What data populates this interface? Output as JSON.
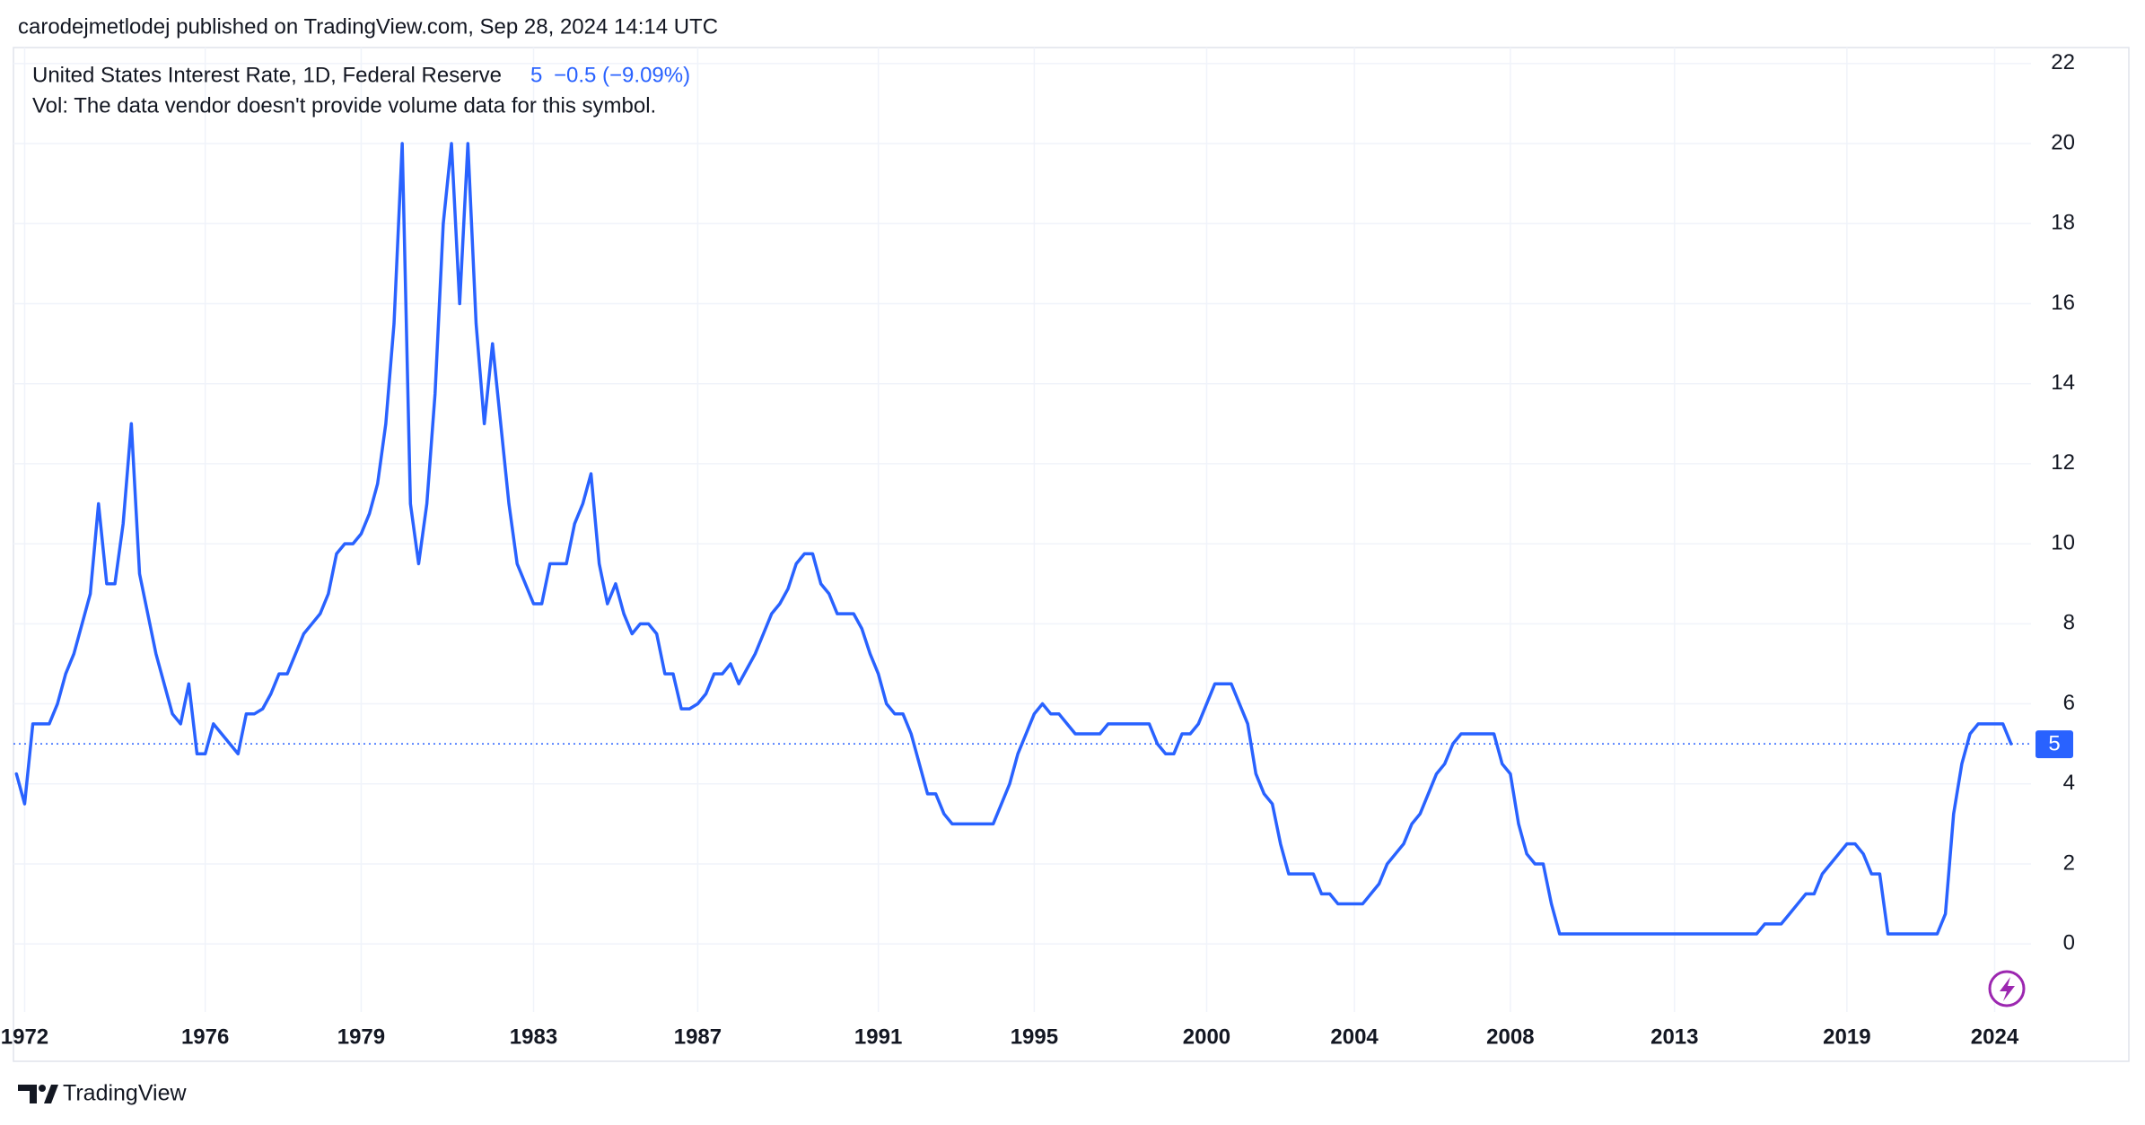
{
  "chart_data": {
    "type": "line",
    "attribution": "carodejmetlodej published on TradingView.com, Sep 28, 2024 14:14 UTC",
    "title": "United States Interest Rate, 1D, Federal Reserve",
    "last_value": 5,
    "change": "−0.5 (−9.09%)",
    "subtitle": "Vol: The data vendor doesn't provide volume data for this symbol.",
    "brand": "TradingView",
    "color": "#2962ff",
    "grid": true,
    "ylim": [
      -1.7,
      22.4
    ],
    "yticks": [
      0,
      2,
      4,
      6,
      8,
      10,
      12,
      14,
      16,
      18,
      20,
      22
    ],
    "categories": [
      null,
      "1972",
      null,
      null,
      null,
      null,
      null,
      null,
      null,
      null,
      null,
      null,
      null,
      null,
      null,
      null,
      null,
      null,
      null,
      null,
      null,
      null,
      null,
      "1976",
      null,
      null,
      null,
      null,
      null,
      null,
      null,
      null,
      null,
      null,
      null,
      null,
      null,
      null,
      null,
      null,
      null,
      null,
      "1979",
      null,
      null,
      null,
      null,
      null,
      null,
      null,
      null,
      null,
      null,
      null,
      null,
      null,
      null,
      null,
      null,
      null,
      null,
      null,
      null,
      "1983",
      null,
      null,
      null,
      null,
      null,
      null,
      null,
      null,
      null,
      null,
      null,
      null,
      null,
      null,
      null,
      null,
      null,
      null,
      null,
      "1987",
      null,
      null,
      null,
      null,
      null,
      null,
      null,
      null,
      null,
      null,
      null,
      null,
      null,
      null,
      null,
      null,
      null,
      null,
      null,
      null,
      null,
      "1991",
      null,
      null,
      null,
      null,
      null,
      null,
      null,
      null,
      null,
      null,
      null,
      null,
      null,
      null,
      null,
      null,
      null,
      null,
      "1995",
      null,
      null,
      null,
      null,
      null,
      null,
      null,
      null,
      null,
      null,
      null,
      null,
      null,
      null,
      null,
      null,
      null,
      null,
      null,
      null,
      "2000",
      null,
      null,
      null,
      null,
      null,
      null,
      null,
      null,
      null,
      null,
      null,
      null,
      null,
      null,
      null,
      null,
      null,
      "2004",
      null,
      null,
      null,
      null,
      null,
      null,
      null,
      null,
      null,
      null,
      null,
      null,
      null,
      null,
      null,
      null,
      null,
      null,
      "2008",
      null,
      null,
      null,
      null,
      null,
      null,
      null,
      null,
      null,
      null,
      null,
      null,
      null,
      null,
      null,
      null,
      null,
      null,
      null,
      "2013",
      null,
      null,
      null,
      null,
      null,
      null,
      null,
      null,
      null,
      null,
      null,
      null,
      null,
      null,
      null,
      null,
      null,
      null,
      null,
      null,
      "2019",
      null,
      null,
      null,
      null,
      null,
      null,
      null,
      null,
      null,
      null,
      null,
      null,
      null,
      null,
      null,
      null,
      null,
      "2024",
      null,
      null
    ],
    "values": [
      4.25,
      3.5,
      5.5,
      5.5,
      5.5,
      6,
      6.75,
      7.25,
      8,
      8.75,
      11,
      9,
      9,
      10.5,
      13,
      9.25,
      8.25,
      7.25,
      6.5,
      5.75,
      5.5,
      6.5,
      4.75,
      4.75,
      5.5,
      5.25,
      5,
      4.75,
      5.75,
      5.75,
      5.875,
      6.25,
      6.75,
      6.75,
      7.25,
      7.75,
      8,
      8.25,
      8.75,
      9.75,
      10,
      10,
      10.25,
      10.75,
      11.5,
      13,
      15.5,
      20,
      11,
      9.5,
      11,
      13.75,
      18,
      20,
      16,
      20,
      15.5,
      13,
      15,
      13,
      11,
      9.5,
      9,
      8.5,
      8.5,
      9.5,
      9.5,
      9.5,
      10.5,
      11,
      11.75,
      9.5,
      8.5,
      9,
      8.25,
      7.75,
      8,
      8,
      7.75,
      6.75,
      6.75,
      5.875,
      5.875,
      6,
      6.25,
      6.75,
      6.75,
      7,
      6.5,
      6.875,
      7.25,
      7.75,
      8.25,
      8.5,
      8.875,
      9.5,
      9.75,
      9.75,
      9,
      8.75,
      8.25,
      8.25,
      8.25,
      7.875,
      7.25,
      6.75,
      6,
      5.75,
      5.75,
      5.25,
      4.5,
      3.75,
      3.75,
      3.25,
      3,
      3,
      3,
      3,
      3,
      3,
      3.5,
      4,
      4.75,
      5.25,
      5.75,
      6,
      5.75,
      5.75,
      5.5,
      5.25,
      5.25,
      5.25,
      5.25,
      5.5,
      5.5,
      5.5,
      5.5,
      5.5,
      5.5,
      5,
      4.75,
      4.75,
      5.25,
      5.25,
      5.5,
      6,
      6.5,
      6.5,
      6.5,
      6,
      5.5,
      4.25,
      3.75,
      3.5,
      2.5,
      1.75,
      1.75,
      1.75,
      1.75,
      1.25,
      1.25,
      1,
      1,
      1,
      1,
      1.25,
      1.5,
      2,
      2.25,
      2.5,
      3,
      3.25,
      3.75,
      4.25,
      4.5,
      5,
      5.25,
      5.25,
      5.25,
      5.25,
      5.25,
      4.5,
      4.25,
      3,
      2.25,
      2,
      2,
      1,
      0.25,
      0.25,
      0.25,
      0.25,
      0.25,
      0.25,
      0.25,
      0.25,
      0.25,
      0.25,
      0.25,
      0.25,
      0.25,
      0.25,
      0.25,
      0.25,
      0.25,
      0.25,
      0.25,
      0.25,
      0.25,
      0.25,
      0.25,
      0.25,
      0.25,
      0.5,
      0.5,
      0.5,
      0.75,
      1,
      1.25,
      1.25,
      1.75,
      2,
      2.25,
      2.5,
      2.5,
      2.25,
      1.75,
      1.75,
      0.25,
      0.25,
      0.25,
      0.25,
      0.25,
      0.25,
      0.25,
      0.75,
      3.25,
      4.5,
      5.25,
      5.5,
      5.5,
      5.5,
      5.5,
      5
    ]
  }
}
